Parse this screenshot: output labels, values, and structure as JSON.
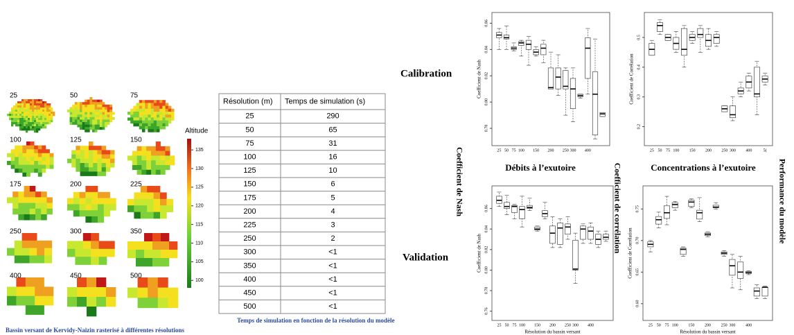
{
  "maps": {
    "labels": [
      "25",
      "50",
      "75",
      "100",
      "125",
      "150",
      "175",
      "200",
      "225",
      "250",
      "300",
      "350",
      "400",
      "450",
      "500"
    ],
    "colorbar": {
      "title": "Altitude",
      "clim": [
        98,
        138
      ],
      "ticks": [
        100,
        105,
        110,
        115,
        120,
        125,
        130,
        135
      ]
    },
    "caption": "Bassin versant de Kervidy-Naizin rasterisé à différentes résolutions"
  },
  "table": {
    "header": [
      "Résolution (m)",
      "Temps de simulation (s)"
    ],
    "rows": [
      [
        25,
        290
      ],
      [
        50,
        65
      ],
      [
        75,
        31
      ],
      [
        100,
        16
      ],
      [
        125,
        10
      ],
      [
        150,
        6
      ],
      [
        175,
        5
      ],
      [
        200,
        4
      ],
      [
        225,
        3
      ],
      [
        250,
        2
      ],
      [
        300,
        "<1"
      ],
      [
        350,
        "<1"
      ],
      [
        400,
        "<1"
      ],
      [
        450,
        "<1"
      ],
      [
        500,
        "<1"
      ]
    ],
    "caption": "Temps de simulation en fonction de la résolution du modèle"
  },
  "labels": {
    "calibration": "Calibration",
    "validation": "Validation",
    "nash": "Coefficient de Nash",
    "correlation": "Coefficient de corrélation",
    "performance": "Performance du modèle",
    "debits": "Débits à l’exutoire",
    "concentrations": "Concentrations à l’exutoire"
  },
  "chart_data": [
    {
      "type": "box",
      "ylabel": "Coefficient de Nash",
      "categories": [
        "25",
        "50",
        "75",
        "100",
        null,
        "150",
        null,
        "200",
        null,
        "250",
        "300",
        null,
        "400",
        null,
        null
      ],
      "ylim": [
        0.77,
        0.865
      ],
      "yticks": [
        {
          "value": 0.78,
          "label": "0.78"
        },
        {
          "value": 0.8,
          "label": "0.80"
        },
        {
          "value": 0.82,
          "label": "0.82"
        },
        {
          "value": 0.84,
          "label": "0.84"
        },
        {
          "value": 0.86,
          "label": "0.86"
        }
      ],
      "low": [
        0.84,
        0.84,
        0.839,
        0.835,
        0.828,
        0.835,
        0.83,
        0.81,
        0.805,
        0.79,
        0.785,
        0.803,
        0.806,
        0.772,
        0.789
      ],
      "q1": [
        0.849,
        0.848,
        0.84,
        0.843,
        0.84,
        0.836,
        0.836,
        0.81,
        0.81,
        0.81,
        0.795,
        0.804,
        0.818,
        0.775,
        0.789
      ],
      "median": [
        0.851,
        0.849,
        0.841,
        0.845,
        0.844,
        0.838,
        0.841,
        0.811,
        0.819,
        0.812,
        0.81,
        0.805,
        0.841,
        0.806,
        0.791
      ],
      "q3": [
        0.853,
        0.851,
        0.842,
        0.846,
        0.847,
        0.84,
        0.844,
        0.826,
        0.826,
        0.824,
        0.818,
        0.806,
        0.849,
        0.823,
        0.792
      ],
      "high": [
        0.856,
        0.858,
        0.845,
        0.847,
        0.85,
        0.842,
        0.847,
        0.838,
        0.836,
        0.826,
        0.826,
        0.806,
        0.856,
        0.848,
        0.792
      ]
    },
    {
      "type": "box",
      "ylabel": "Coefficient de Corrélation",
      "categories": [
        "25",
        "50",
        "75",
        "100",
        null,
        "150",
        null,
        "200",
        null,
        "250",
        "300",
        null,
        "400",
        null,
        "5("
      ],
      "ylim": [
        0.15,
        0.57
      ],
      "yticks": [
        0.2,
        0.3,
        0.4,
        0.5
      ],
      "low": [
        0.44,
        0.51,
        0.49,
        0.45,
        0.4,
        0.48,
        0.45,
        0.46,
        0.47,
        0.25,
        0.22,
        0.3,
        0.32,
        0.24,
        0.34
      ],
      "q1": [
        0.44,
        0.52,
        0.49,
        0.46,
        0.44,
        0.49,
        0.5,
        0.47,
        0.48,
        0.25,
        0.23,
        0.31,
        0.33,
        0.3,
        0.35
      ],
      "median": [
        0.46,
        0.54,
        0.5,
        0.48,
        0.46,
        0.5,
        0.51,
        0.49,
        0.5,
        0.26,
        0.24,
        0.32,
        0.35,
        0.31,
        0.36
      ],
      "q3": [
        0.48,
        0.55,
        0.51,
        0.5,
        0.53,
        0.51,
        0.53,
        0.51,
        0.51,
        0.27,
        0.27,
        0.33,
        0.37,
        0.4,
        0.37
      ],
      "high": [
        0.49,
        0.56,
        0.51,
        0.52,
        0.54,
        0.52,
        0.54,
        0.53,
        0.52,
        0.27,
        0.3,
        0.35,
        0.38,
        0.42,
        0.38
      ]
    },
    {
      "type": "box",
      "ylabel": "Coefficient de Nash",
      "xlabel": "Résolution du bassin versant",
      "categories": [
        "25",
        "50",
        "75",
        "100",
        null,
        "150",
        null,
        "200",
        null,
        "250",
        "300",
        null,
        "400",
        null,
        null
      ],
      "ylim": [
        0.755,
        0.878
      ],
      "yticks": [
        {
          "value": 0.76,
          "label": "0.76"
        },
        {
          "value": 0.78,
          "label": "0.78"
        },
        {
          "value": 0.8,
          "label": "0.80"
        },
        {
          "value": 0.82,
          "label": "0.82"
        },
        {
          "value": 0.84,
          "label": "0.84"
        },
        {
          "value": 0.86,
          "label": "0.86"
        }
      ],
      "low": [
        0.862,
        0.854,
        0.85,
        0.842,
        0.858,
        0.838,
        0.85,
        0.822,
        0.822,
        0.83,
        0.787,
        0.826,
        0.826,
        0.822,
        0.828
      ],
      "q1": [
        0.865,
        0.86,
        0.856,
        0.85,
        0.86,
        0.839,
        0.852,
        0.826,
        0.825,
        0.835,
        0.8,
        0.83,
        0.83,
        0.825,
        0.83
      ],
      "median": [
        0.868,
        0.862,
        0.862,
        0.859,
        0.861,
        0.84,
        0.855,
        0.836,
        0.841,
        0.842,
        0.801,
        0.84,
        0.838,
        0.83,
        0.832
      ],
      "q3": [
        0.872,
        0.866,
        0.863,
        0.862,
        0.863,
        0.842,
        0.858,
        0.843,
        0.846,
        0.845,
        0.829,
        0.843,
        0.842,
        0.835,
        0.835
      ],
      "high": [
        0.876,
        0.873,
        0.864,
        0.872,
        0.87,
        0.843,
        0.866,
        0.852,
        0.85,
        0.852,
        0.836,
        0.845,
        0.846,
        0.838,
        0.838
      ]
    },
    {
      "type": "box",
      "ylabel": "Coefficient de Corrélation",
      "xlabel": "Résolution du bassin versant",
      "categories": [
        "25",
        "50",
        "75",
        "100",
        null,
        "150",
        null,
        "200",
        null,
        "250",
        "300",
        null,
        "400",
        null,
        null
      ],
      "ylim": [
        0.58,
        0.78
      ],
      "yticks": [
        {
          "value": 0.6,
          "label": "0.60"
        },
        0.65,
        {
          "value": 0.7,
          "label": "0.70"
        },
        0.75
      ],
      "low": [
        0.682,
        0.72,
        0.725,
        0.748,
        0.675,
        0.752,
        0.73,
        0.706,
        0.75,
        0.675,
        0.625,
        0.622,
        0.646,
        0.608,
        0.608
      ],
      "q1": [
        0.69,
        0.726,
        0.735,
        0.752,
        0.678,
        0.754,
        0.734,
        0.708,
        0.752,
        0.678,
        0.645,
        0.64,
        0.648,
        0.612,
        0.612
      ],
      "median": [
        0.694,
        0.733,
        0.744,
        0.757,
        0.686,
        0.761,
        0.744,
        0.71,
        0.753,
        0.68,
        0.66,
        0.65,
        0.649,
        0.62,
        0.626
      ],
      "q3": [
        0.698,
        0.738,
        0.755,
        0.76,
        0.688,
        0.764,
        0.748,
        0.712,
        0.756,
        0.682,
        0.67,
        0.666,
        0.651,
        0.625,
        0.626
      ],
      "high": [
        0.7,
        0.745,
        0.77,
        0.762,
        0.69,
        0.766,
        0.768,
        0.714,
        0.76,
        0.684,
        0.678,
        0.675,
        0.652,
        0.63,
        0.628
      ]
    }
  ]
}
